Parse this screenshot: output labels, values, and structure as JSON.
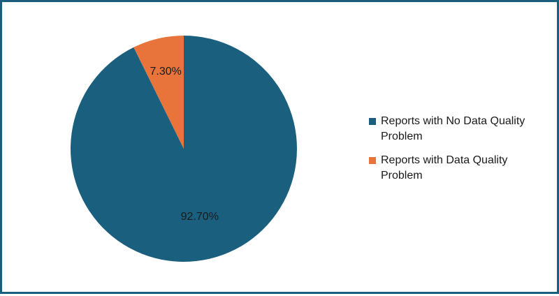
{
  "chart_data": {
    "type": "pie",
    "slices": [
      {
        "label": "Reports with No Data Quality Problem",
        "value": 92.7,
        "display": "92.70%",
        "color": "#1b5f7e"
      },
      {
        "label": "Reports with Data Quality Problem",
        "value": 7.3,
        "display": "7.30%",
        "color": "#e8743b"
      }
    ],
    "start_angle_deg": 0,
    "direction": "clockwise",
    "legend_position": "right"
  }
}
